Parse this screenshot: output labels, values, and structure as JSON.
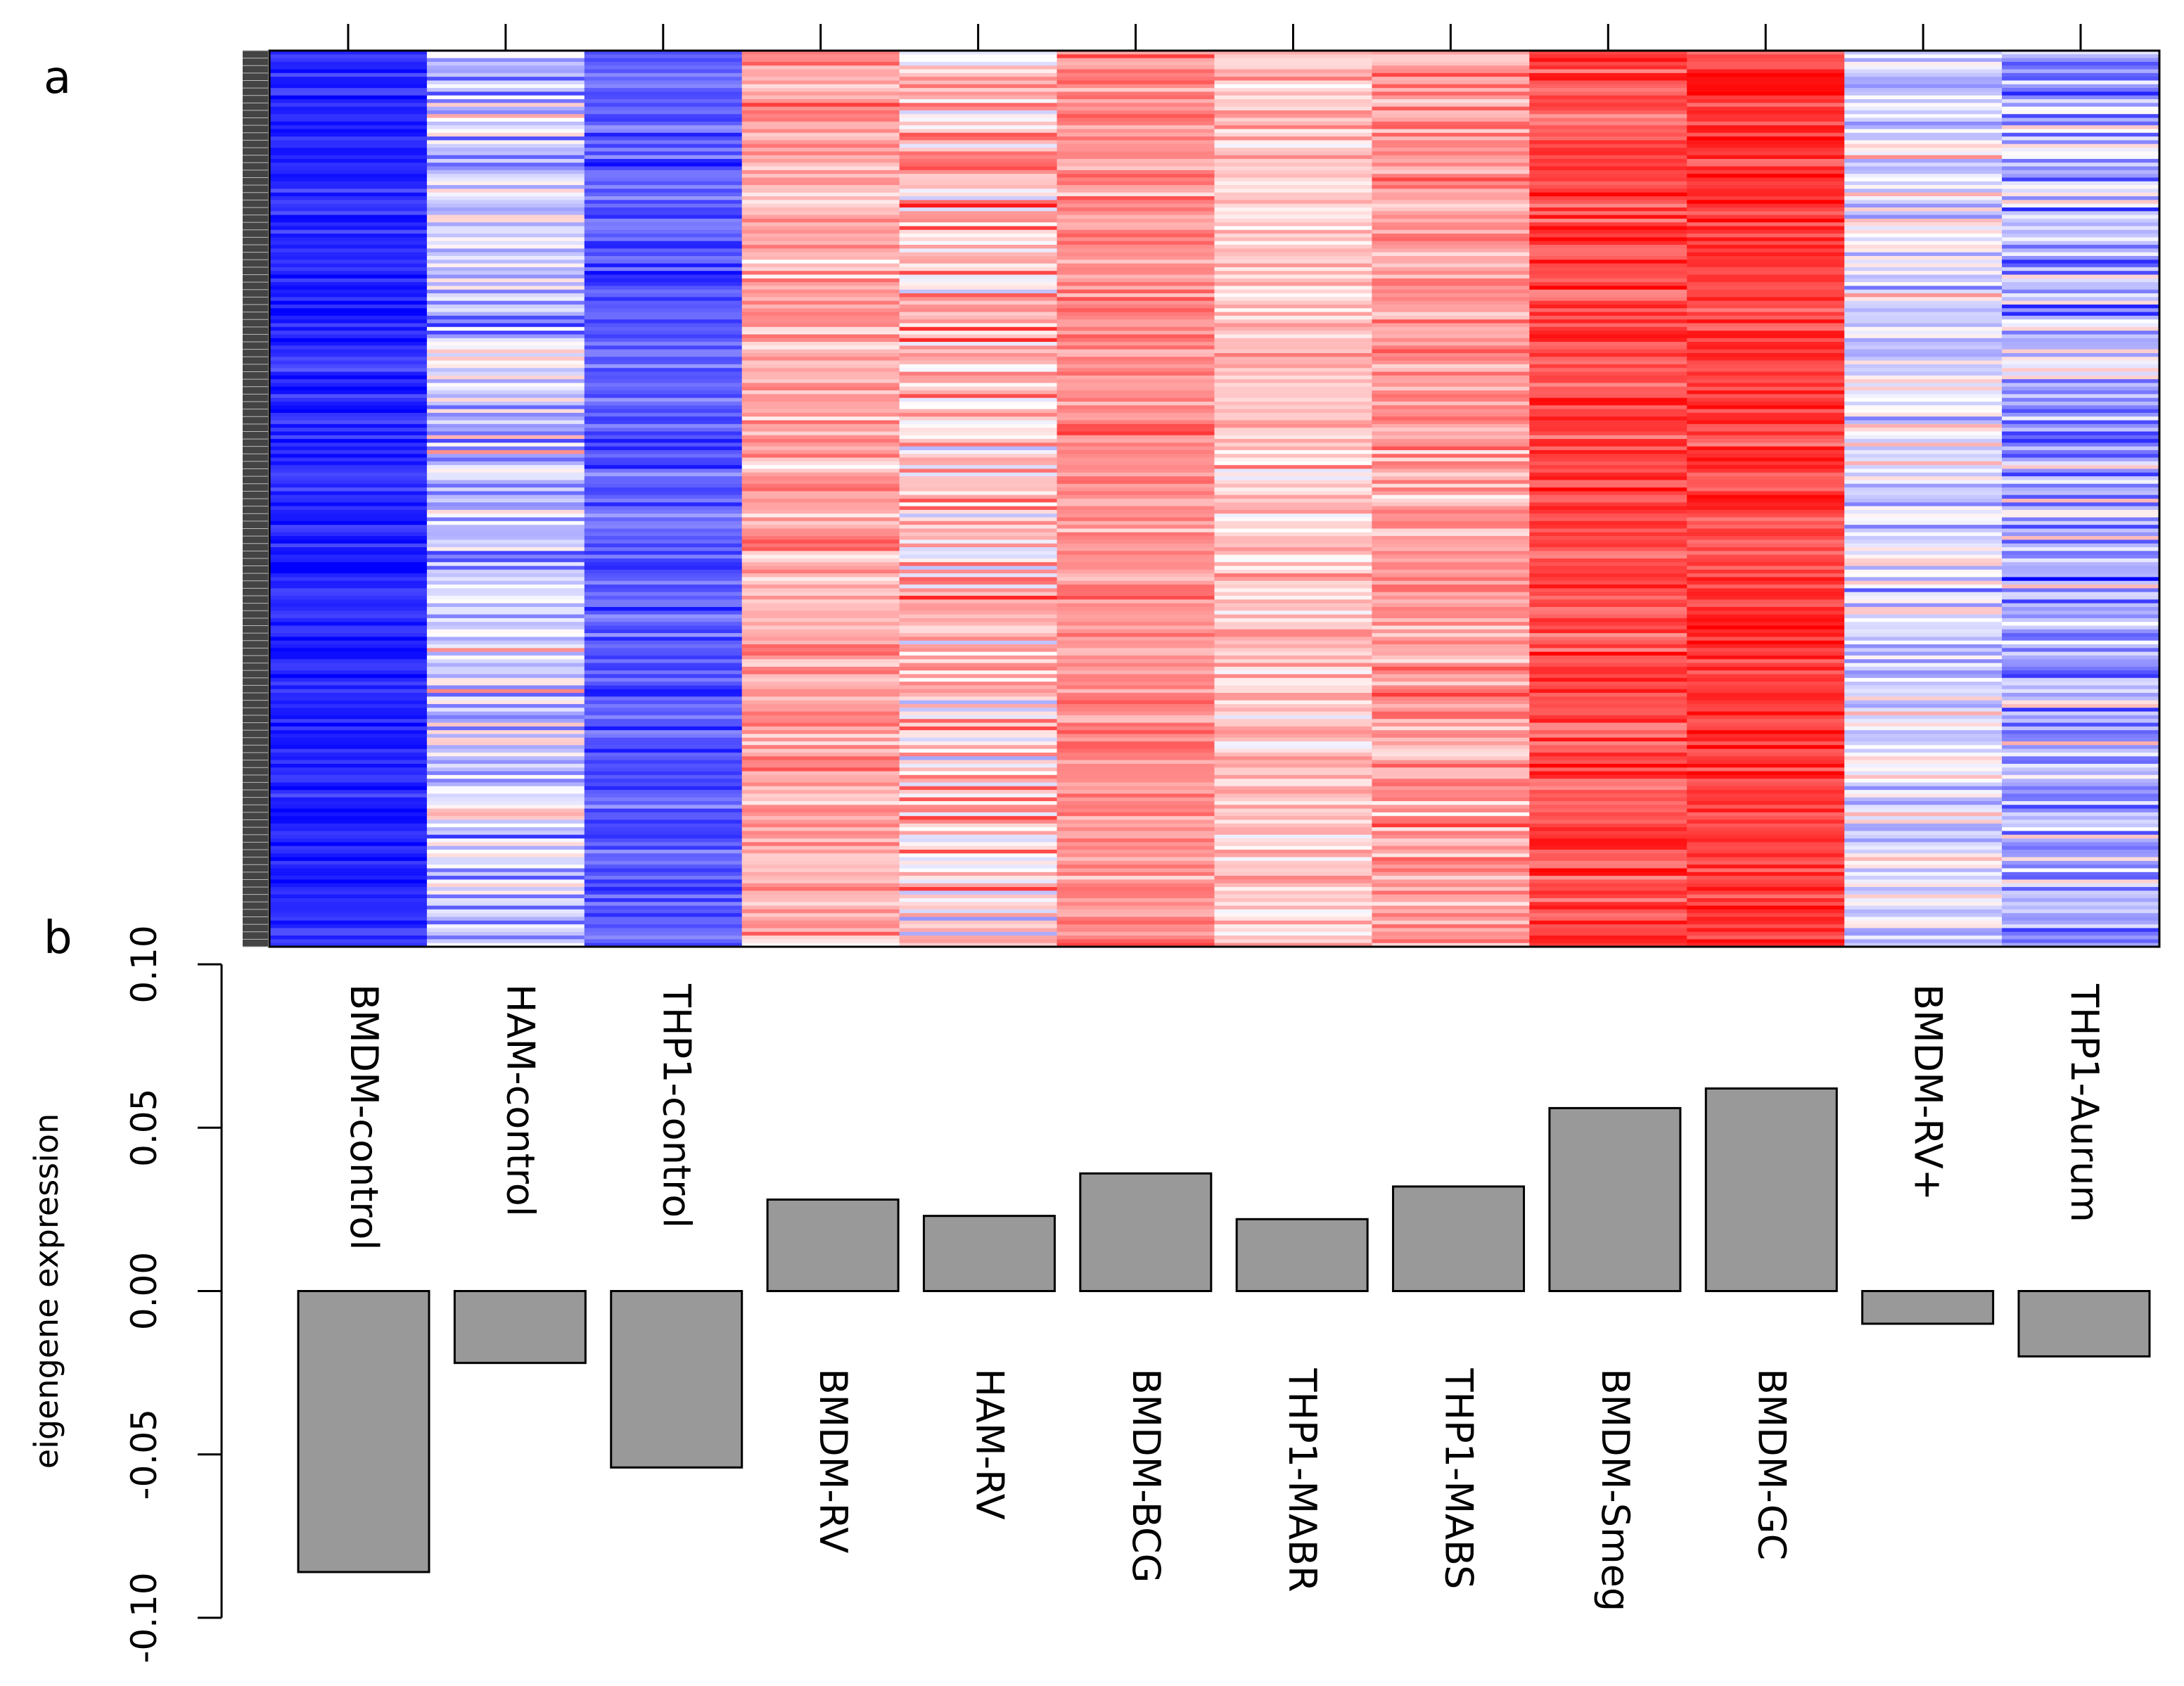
{
  "panels": {
    "a": "a",
    "b": "b"
  },
  "chart_data": [
    {
      "panel": "a",
      "type": "heatmap",
      "title": "",
      "columns": [
        "BMDM-control",
        "HAM-control",
        "THP1-control",
        "BMDM-RV",
        "HAM-RV",
        "BMDM-BCG",
        "THP1-MABR",
        "THP1-MABS",
        "BMDM-Smeg",
        "BMDM-GC",
        "BMDM-RV+",
        "THP1-Aurum"
      ],
      "column_mean_scores": [
        -0.85,
        -0.2,
        -0.65,
        0.35,
        0.25,
        0.45,
        0.22,
        0.38,
        0.72,
        0.78,
        -0.1,
        -0.3
      ],
      "column_spread": [
        0.12,
        0.35,
        0.18,
        0.22,
        0.38,
        0.18,
        0.2,
        0.22,
        0.2,
        0.18,
        0.3,
        0.38
      ],
      "n_rows": 240,
      "seed": 7,
      "colors": {
        "low": "#0000ff",
        "mid": "#ffffff",
        "high": "#ff0000"
      }
    },
    {
      "panel": "b",
      "type": "bar",
      "categories": [
        "BMDM-control",
        "HAM-control",
        "THP1-control",
        "BMDM-RV",
        "HAM-RV",
        "BMDM-BCG",
        "THP1-MABR",
        "THP1-MABS",
        "BMDM-Smeg",
        "BMDM-GC",
        "BMDM-RV+",
        "THP1-Aurum"
      ],
      "values": [
        -0.086,
        -0.022,
        -0.054,
        0.028,
        0.023,
        0.036,
        0.022,
        0.032,
        0.056,
        0.062,
        -0.01,
        -0.02
      ],
      "title": "",
      "xlabel": "",
      "ylabel": "eigengene expression",
      "ylim": [
        -0.1,
        0.1
      ],
      "yticks": [
        -0.1,
        -0.05,
        0.0,
        0.05,
        0.1
      ],
      "ytick_labels": [
        "-0.10",
        "-0.05",
        "0.00",
        "0.05",
        "0.10"
      ],
      "bar_color": "#999999"
    }
  ]
}
